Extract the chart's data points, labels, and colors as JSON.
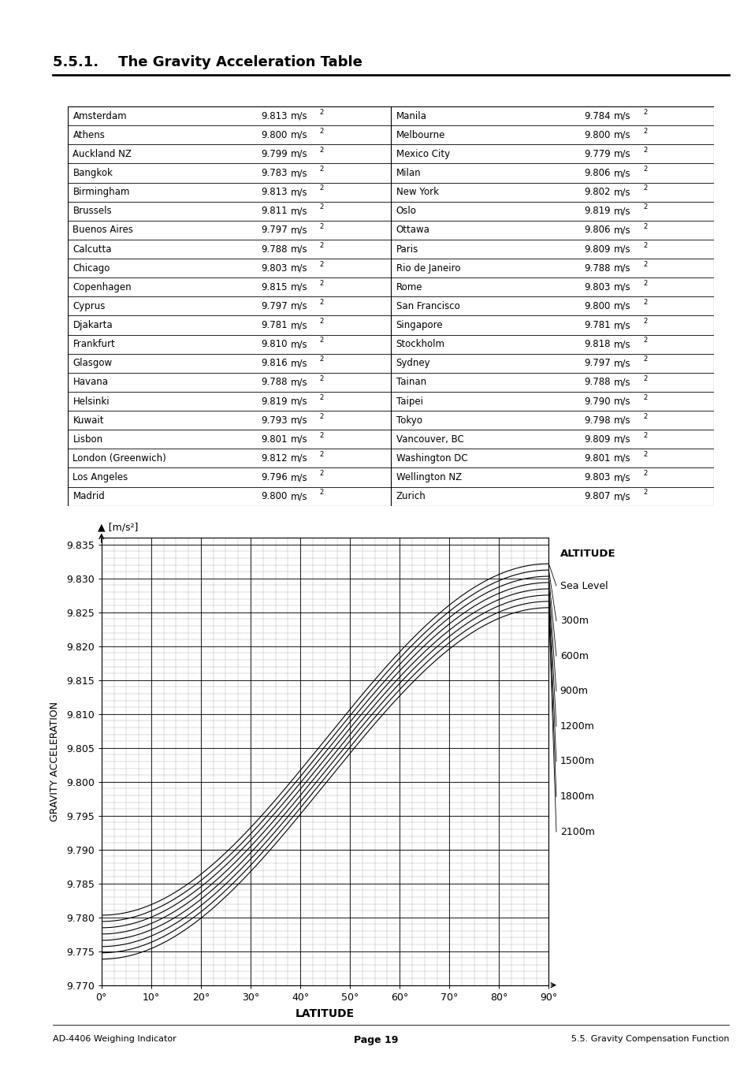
{
  "title": "5.5.1.    The Gravity Acceleration Table",
  "table_left": [
    [
      "Amsterdam",
      "9.813"
    ],
    [
      "Athens",
      "9.800"
    ],
    [
      "Auckland NZ",
      "9.799"
    ],
    [
      "Bangkok",
      "9.783"
    ],
    [
      "Birmingham",
      "9.813"
    ],
    [
      "Brussels",
      "9.811"
    ],
    [
      "Buenos Aires",
      "9.797"
    ],
    [
      "Calcutta",
      "9.788"
    ],
    [
      "Chicago",
      "9.803"
    ],
    [
      "Copenhagen",
      "9.815"
    ],
    [
      "Cyprus",
      "9.797"
    ],
    [
      "Djakarta",
      "9.781"
    ],
    [
      "Frankfurt",
      "9.810"
    ],
    [
      "Glasgow",
      "9.816"
    ],
    [
      "Havana",
      "9.788"
    ],
    [
      "Helsinki",
      "9.819"
    ],
    [
      "Kuwait",
      "9.793"
    ],
    [
      "Lisbon",
      "9.801"
    ],
    [
      "London (Greenwich)",
      "9.812"
    ],
    [
      "Los Angeles",
      "9.796"
    ],
    [
      "Madrid",
      "9.800"
    ]
  ],
  "table_right": [
    [
      "Manila",
      "9.784"
    ],
    [
      "Melbourne",
      "9.800"
    ],
    [
      "Mexico City",
      "9.779"
    ],
    [
      "Milan",
      "9.806"
    ],
    [
      "New York",
      "9.802"
    ],
    [
      "Oslo",
      "9.819"
    ],
    [
      "Ottawa",
      "9.806"
    ],
    [
      "Paris",
      "9.809"
    ],
    [
      "Rio de Janeiro",
      "9.788"
    ],
    [
      "Rome",
      "9.803"
    ],
    [
      "San Francisco",
      "9.800"
    ],
    [
      "Singapore",
      "9.781"
    ],
    [
      "Stockholm",
      "9.818"
    ],
    [
      "Sydney",
      "9.797"
    ],
    [
      "Tainan",
      "9.788"
    ],
    [
      "Taipei",
      "9.790"
    ],
    [
      "Tokyo",
      "9.798"
    ],
    [
      "Vancouver, BC",
      "9.809"
    ],
    [
      "Washington DC",
      "9.801"
    ],
    [
      "Wellington NZ",
      "9.803"
    ],
    [
      "Zurich",
      "9.807"
    ]
  ],
  "altitudes_m": [
    0,
    300,
    600,
    900,
    1200,
    1500,
    1800,
    2100
  ],
  "altitude_labels": [
    "Sea Level",
    "300m",
    "600m",
    "900m",
    "1200m",
    "1500m",
    "1800m",
    "2100m"
  ],
  "ylim": [
    9.77,
    9.836
  ],
  "yticks": [
    9.77,
    9.775,
    9.78,
    9.785,
    9.79,
    9.795,
    9.8,
    9.805,
    9.81,
    9.815,
    9.82,
    9.825,
    9.83,
    9.835
  ],
  "xticks": [
    0,
    10,
    20,
    30,
    40,
    50,
    60,
    70,
    80,
    90
  ],
  "xlabel": "LATITUDE",
  "ylabel": "GRAVITY ACCELERATION",
  "footer_left": "AD-4406 Weighing Indicator",
  "footer_center": "Page 19",
  "footer_right": "5.5. Gravity Compensation Function",
  "background_color": "#ffffff"
}
